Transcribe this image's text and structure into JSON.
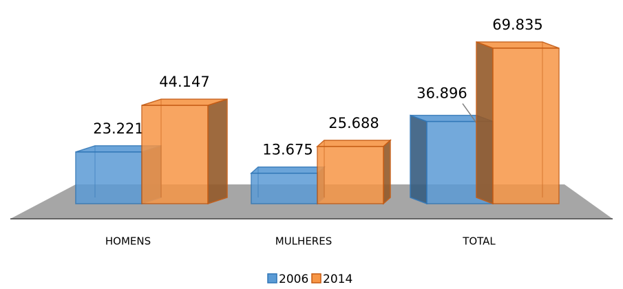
{
  "chart_data": {
    "type": "bar3d",
    "categories": [
      "HOMENS",
      "MULHERES",
      "TOTAL"
    ],
    "series": [
      {
        "name": "2006",
        "color": "#5b9bd5",
        "values": [
          23221,
          13675,
          36896
        ],
        "value_labels": [
          "23.221",
          "13.675",
          "36.896"
        ]
      },
      {
        "name": "2014",
        "color": "#f79646",
        "values": [
          44147,
          25688,
          69835
        ],
        "value_labels": [
          "44.147",
          "25.688",
          "69.835"
        ]
      }
    ],
    "legend": "bottom"
  }
}
